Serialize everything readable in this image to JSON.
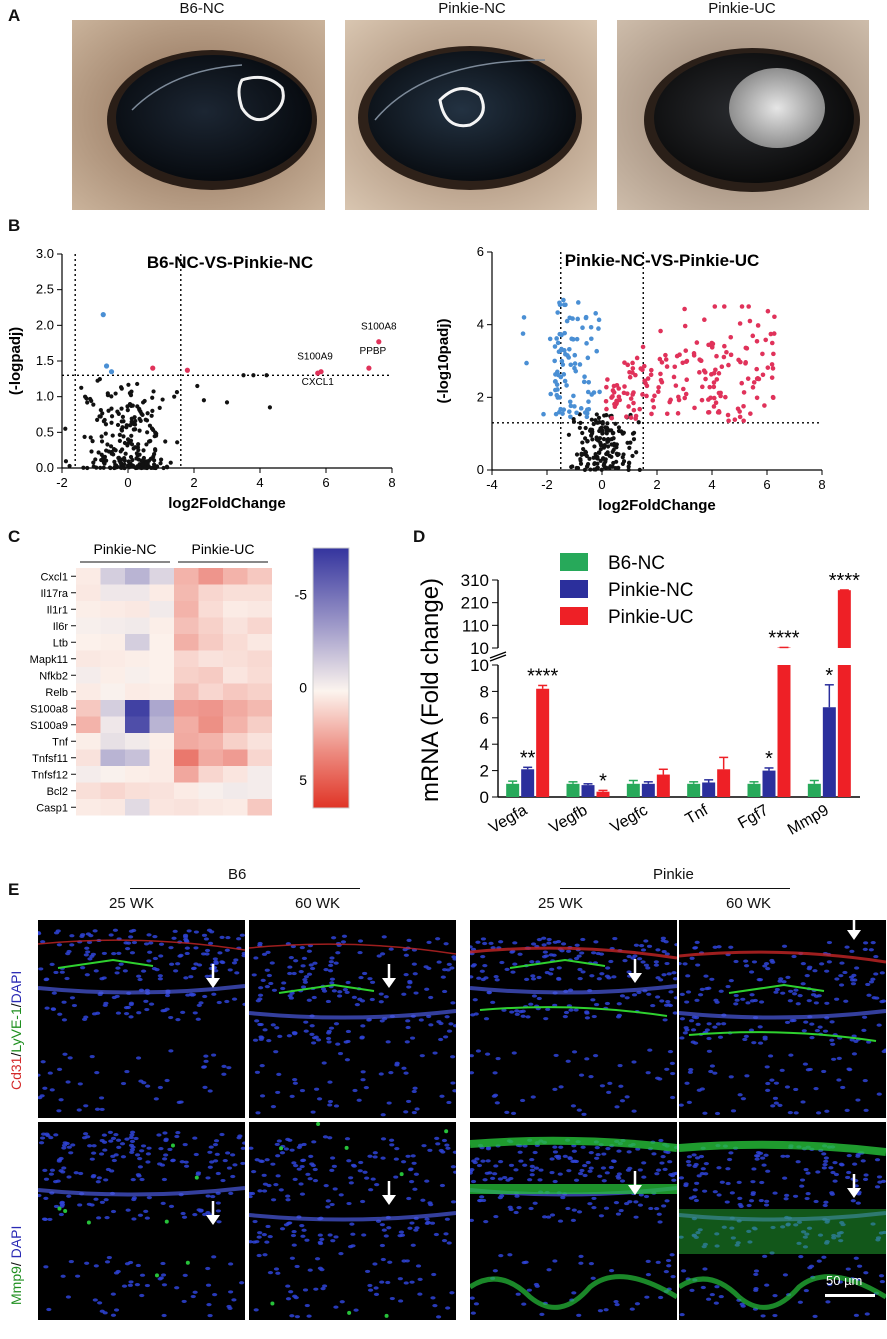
{
  "panels": {
    "a": "A",
    "b": "B",
    "c": "C",
    "d": "D",
    "e": "E"
  },
  "panel_a": {
    "labels": [
      "B6-NC",
      "Pinkie-NC",
      "Pinkie-UC"
    ]
  },
  "chart_data": [
    {
      "type": "scatter",
      "title": "B6-NC-VS-Pinkie-NC",
      "xlabel": "log2FoldChange",
      "ylabel": "(-logpadj)",
      "xlim": [
        -2,
        8
      ],
      "ylim": [
        0,
        3.0
      ],
      "xticks": [
        "-2",
        "0",
        "2",
        "4",
        "6",
        "8"
      ],
      "yticks": [
        "0.0",
        "0.5",
        "1.0",
        "1.5",
        "2.0",
        "2.5",
        "3.0"
      ],
      "thresholds": {
        "x": [
          -1.6,
          1.6
        ],
        "y": 1.3
      },
      "labeled_points": [
        {
          "name": "S100A8",
          "x": 7.6,
          "y": 1.77
        },
        {
          "name": "S100A9",
          "x": 5.85,
          "y": 1.35
        },
        {
          "name": "PPBP",
          "x": 7.3,
          "y": 1.4
        },
        {
          "name": "CXCL1",
          "x": 5.75,
          "y": 1.33
        }
      ],
      "up_points": [
        {
          "x": 0.75,
          "y": 1.4
        },
        {
          "x": 1.8,
          "y": 1.37
        }
      ],
      "down_points": [
        {
          "x": -0.75,
          "y": 2.15
        },
        {
          "x": -0.65,
          "y": 1.43
        },
        {
          "x": -0.5,
          "y": 1.35
        }
      ],
      "ns_points_summary": "~250 non-significant genes clustered near x=0, y=0-1.3"
    },
    {
      "type": "scatter",
      "title": "Pinkie-NC-VS-Pinkie-UC",
      "xlabel": "log2FoldChange",
      "ylabel": "(-log10padj)",
      "xlim": [
        -4,
        8
      ],
      "ylim": [
        0,
        6
      ],
      "xticks": [
        "-4",
        "-2",
        "0",
        "2",
        "4",
        "6",
        "8"
      ],
      "yticks": [
        "0",
        "2",
        "4",
        "6"
      ],
      "thresholds": {
        "x": [
          -1.5,
          1.5
        ],
        "y": 1.3
      },
      "groups_summary": "blue: downregulated (x -3 to 0, y 1.3-4.9); red: upregulated (x 0 to 6.5, y 1.3-4.5); black: not significant near origin"
    },
    {
      "type": "heatmap",
      "column_groups": [
        {
          "name": "Pinkie-NC",
          "columns": 4
        },
        {
          "name": "Pinkie-UC",
          "columns": 4
        }
      ],
      "rows": [
        "Cxcl1",
        "Il17ra",
        "Il1r1",
        "Il6r",
        "Ltb",
        "Mapk11",
        "Nfkb2",
        "Relb",
        "S100a8",
        "S100a9",
        "Tnf",
        "Tnfsf11",
        "Tnfsf12",
        "Bcl2",
        "Casp1"
      ],
      "values": [
        [
          0.3,
          -1.5,
          -2.5,
          -1.2,
          2.2,
          3.2,
          2.2,
          1.5
        ],
        [
          0.4,
          -0.5,
          -0.5,
          0.3,
          2.0,
          1.0,
          0.7,
          0.7
        ],
        [
          0.2,
          0.3,
          0.4,
          -0.4,
          2.2,
          0.8,
          0.3,
          0.4
        ],
        [
          -0.2,
          -0.3,
          -0.4,
          0.2,
          1.8,
          1.2,
          0.6,
          1.0
        ],
        [
          0.1,
          0.2,
          -1.5,
          0.1,
          2.3,
          1.4,
          0.8,
          0.4
        ],
        [
          0.4,
          0.3,
          0.2,
          0.1,
          1.0,
          0.6,
          0.7,
          0.9
        ],
        [
          -0.3,
          0.2,
          -0.2,
          0.1,
          1.2,
          1.4,
          0.5,
          0.8
        ],
        [
          0.3,
          -0.1,
          0.3,
          0.2,
          1.8,
          1.0,
          1.5,
          1.2
        ],
        [
          1.5,
          -1.5,
          -7.0,
          -3.0,
          3.0,
          3.2,
          2.5,
          2.0
        ],
        [
          2.2,
          -0.5,
          -6.5,
          -2.5,
          2.4,
          3.4,
          2.2,
          1.3
        ],
        [
          0.2,
          -0.8,
          -0.4,
          0.2,
          2.5,
          2.2,
          1.2,
          0.6
        ],
        [
          0.6,
          -2.5,
          -2.0,
          0.3,
          4.2,
          2.5,
          3.0,
          1.0
        ],
        [
          -0.3,
          -0.1,
          0.2,
          0.3,
          2.6,
          1.0,
          0.5,
          -0.3
        ],
        [
          0.7,
          1.0,
          0.7,
          0.6,
          0.3,
          -0.2,
          -0.4,
          -0.3
        ],
        [
          0.3,
          0.4,
          -1.0,
          0.5,
          0.6,
          0.4,
          0.3,
          1.5
        ]
      ],
      "colorbar": {
        "min": -7,
        "max": 6,
        "ticks": [
          "-5",
          "0",
          "5"
        ]
      }
    },
    {
      "type": "bar",
      "ylabel": "mRNA (Fold change)",
      "categories": [
        "Vegfa",
        "Vegfb",
        "Vegfc",
        "Tnf",
        "Fgf7",
        "Mmp9"
      ],
      "series": [
        {
          "name": "B6-NC",
          "color": "#27a95a",
          "values": [
            1,
            1,
            1,
            1,
            1,
            1
          ],
          "errors": [
            0.2,
            0.15,
            0.25,
            0.15,
            0.15,
            0.25
          ]
        },
        {
          "name": "Pinkie-NC",
          "color": "#2b2f9c",
          "values": [
            2.1,
            0.9,
            1.0,
            1.1,
            2.0,
            6.8
          ],
          "errors": [
            0.15,
            0.1,
            0.15,
            0.2,
            0.2,
            1.7
          ]
        },
        {
          "name": "Pinkie-UC",
          "color": "#ee2026",
          "values": [
            8.2,
            0.4,
            1.7,
            2.1,
            12,
            265
          ],
          "errors": [
            0.25,
            0.1,
            0.4,
            0.9,
            0.5,
            1
          ]
        }
      ],
      "axis_break": {
        "lower": [
          0,
          10
        ],
        "upper": [
          10,
          310
        ]
      },
      "yticks_lower": [
        "0",
        "2",
        "4",
        "6",
        "8",
        "10"
      ],
      "yticks_upper": [
        "10",
        "110",
        "210",
        "310"
      ],
      "significance": [
        {
          "category": "Vegfa",
          "series": "Pinkie-NC",
          "label": "**"
        },
        {
          "category": "Vegfa",
          "series": "Pinkie-UC",
          "label": "****"
        },
        {
          "category": "Vegfb",
          "series": "Pinkie-UC",
          "label": "*"
        },
        {
          "category": "Fgf7",
          "series": "Pinkie-NC",
          "label": "*"
        },
        {
          "category": "Fgf7",
          "series": "Pinkie-UC",
          "label": "****"
        },
        {
          "category": "Mmp9",
          "series": "Pinkie-NC",
          "label": "*"
        },
        {
          "category": "Mmp9",
          "series": "Pinkie-UC",
          "label": "****"
        }
      ]
    }
  ],
  "panel_e": {
    "group_b6": "B6",
    "group_pinkie": "Pinkie",
    "time_labels": [
      "25 WK",
      "60 WK",
      "25 WK",
      "60 WK"
    ],
    "row1_label_parts": [
      "Cd31",
      "/",
      "LyVE-1",
      "/",
      "DAPI"
    ],
    "row1_colors": [
      "#d42a2a",
      "#111111",
      "#1f8f1f",
      "#111111",
      "#2a2ab4"
    ],
    "row2_label_parts": [
      "Mmp9",
      "/ ",
      "DAPI"
    ],
    "row2_colors": [
      "#1f8f1f",
      "#111111",
      "#2a2ab4"
    ],
    "scale_bar": "50 µm"
  }
}
